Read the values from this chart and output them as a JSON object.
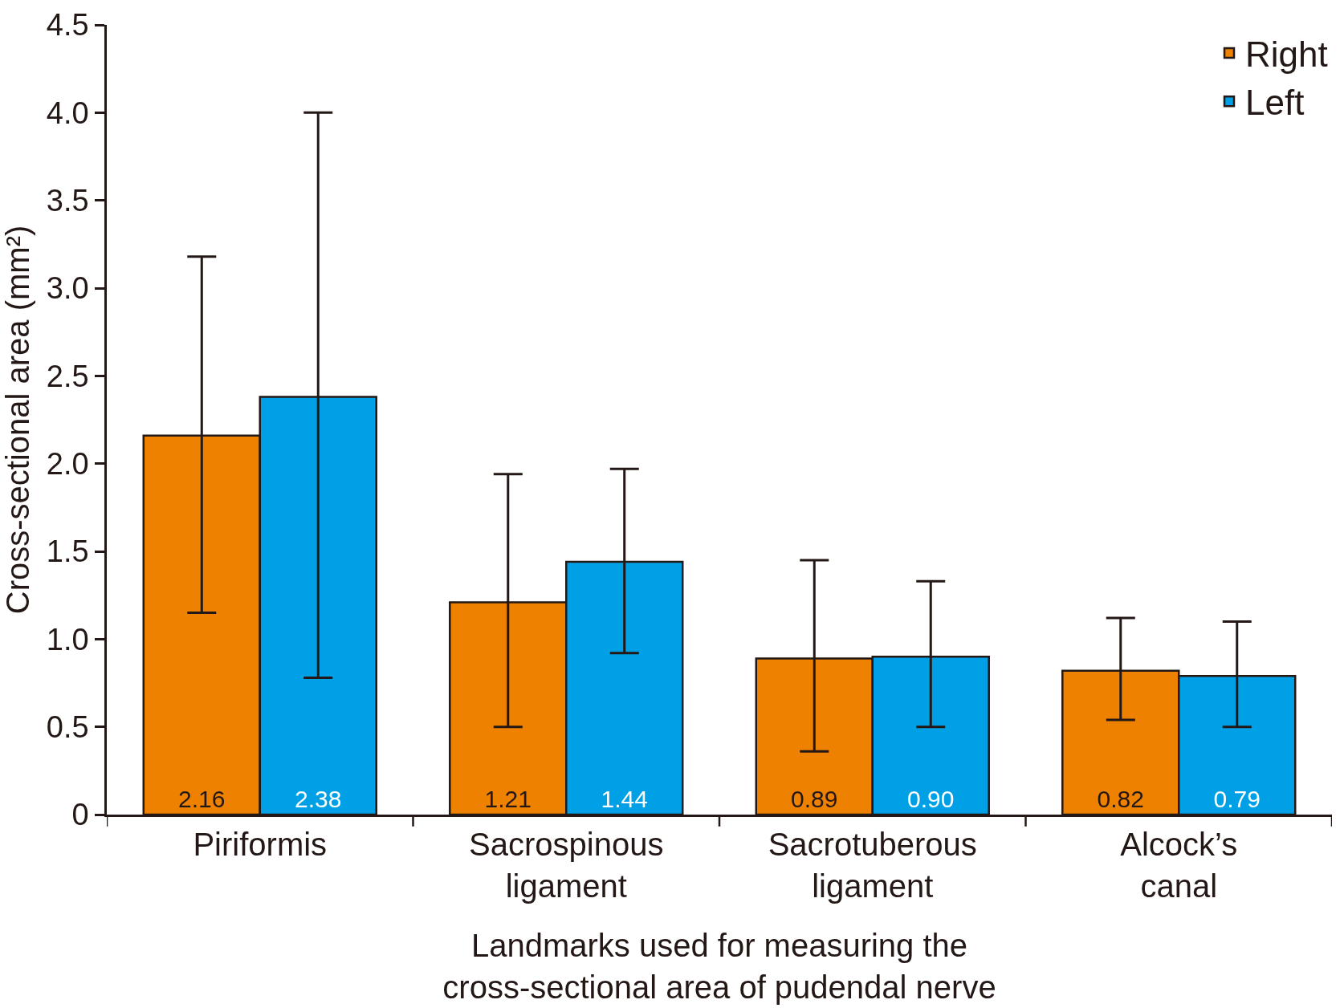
{
  "chart_data": {
    "type": "bar",
    "ylabel": "Cross-sectional area (mm²)",
    "xlabel": "Landmarks used for measuring the\ncross-sectional area of pudendal nerve",
    "categories": [
      "Piriformis",
      "Sacrospinous\nligament",
      "Sacrotuberous\nligament",
      "Alcock’s\ncanal"
    ],
    "series": [
      {
        "name": "Right",
        "color": "#ee8100",
        "values": [
          2.16,
          1.21,
          0.89,
          0.82
        ],
        "value_labels": [
          "2.16",
          "1.21",
          "0.89",
          "0.82"
        ],
        "errors": [
          [
            1.15,
            3.18
          ],
          [
            0.5,
            1.94
          ],
          [
            0.36,
            1.45
          ],
          [
            0.54,
            1.12
          ]
        ]
      },
      {
        "name": "Left",
        "color": "#00a0e6",
        "values": [
          2.38,
          1.44,
          0.9,
          0.79
        ],
        "value_labels": [
          "2.38",
          "1.44",
          "0.90",
          "0.79"
        ],
        "errors": [
          [
            0.78,
            4.0
          ],
          [
            0.92,
            1.97
          ],
          [
            0.5,
            1.33
          ],
          [
            0.5,
            1.1
          ]
        ]
      }
    ],
    "ylim": [
      0,
      4.5
    ],
    "yticks": [
      0,
      {
        "value": 0.5,
        "label": "0.5"
      },
      {
        "value": 1,
        "label": "1.0"
      },
      {
        "value": 1.5,
        "label": "1.5"
      },
      {
        "value": 2,
        "label": "2.0"
      },
      {
        "value": 2.5,
        "label": "2.5"
      },
      {
        "value": 3,
        "label": "3.0"
      },
      {
        "value": 3.5,
        "label": "3.5"
      },
      {
        "value": 4,
        "label": "4.0"
      },
      {
        "value": 4.5,
        "label": "4.5"
      }
    ],
    "legend": "top right"
  }
}
